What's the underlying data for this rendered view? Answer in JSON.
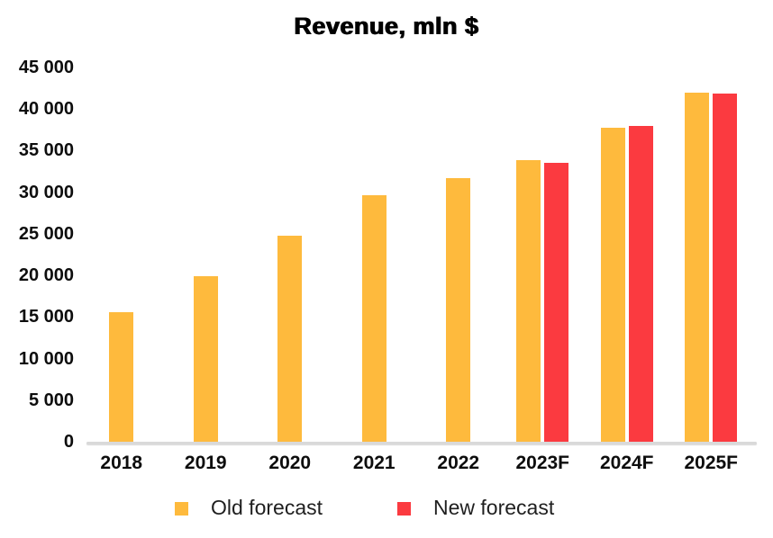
{
  "chart_data": {
    "type": "bar",
    "title": "Revenue, mln $",
    "categories": [
      "2018",
      "2019",
      "2020",
      "2021",
      "2022",
      "2023F",
      "2024F",
      "2025F"
    ],
    "series": [
      {
        "name": "Old forecast",
        "color": "#FEBA3D",
        "values": [
          15600,
          19900,
          24800,
          29600,
          31700,
          33900,
          37800,
          42000
        ]
      },
      {
        "name": "New forecast",
        "color": "#FB3A40",
        "values": [
          null,
          null,
          null,
          null,
          null,
          33500,
          38000,
          41900
        ]
      }
    ],
    "xlabel": "",
    "ylabel": "",
    "ylim": [
      0,
      45000
    ],
    "ytick_step": 5000,
    "ytick_labels": [
      "0",
      "5 000",
      "10 000",
      "15 000",
      "20 000",
      "25 000",
      "30 000",
      "35 000",
      "40 000",
      "45 000"
    ],
    "grid": false,
    "legend_position": "bottom",
    "axis_line_color": "#D9D9D9",
    "text_color": "#0D0D0D"
  }
}
